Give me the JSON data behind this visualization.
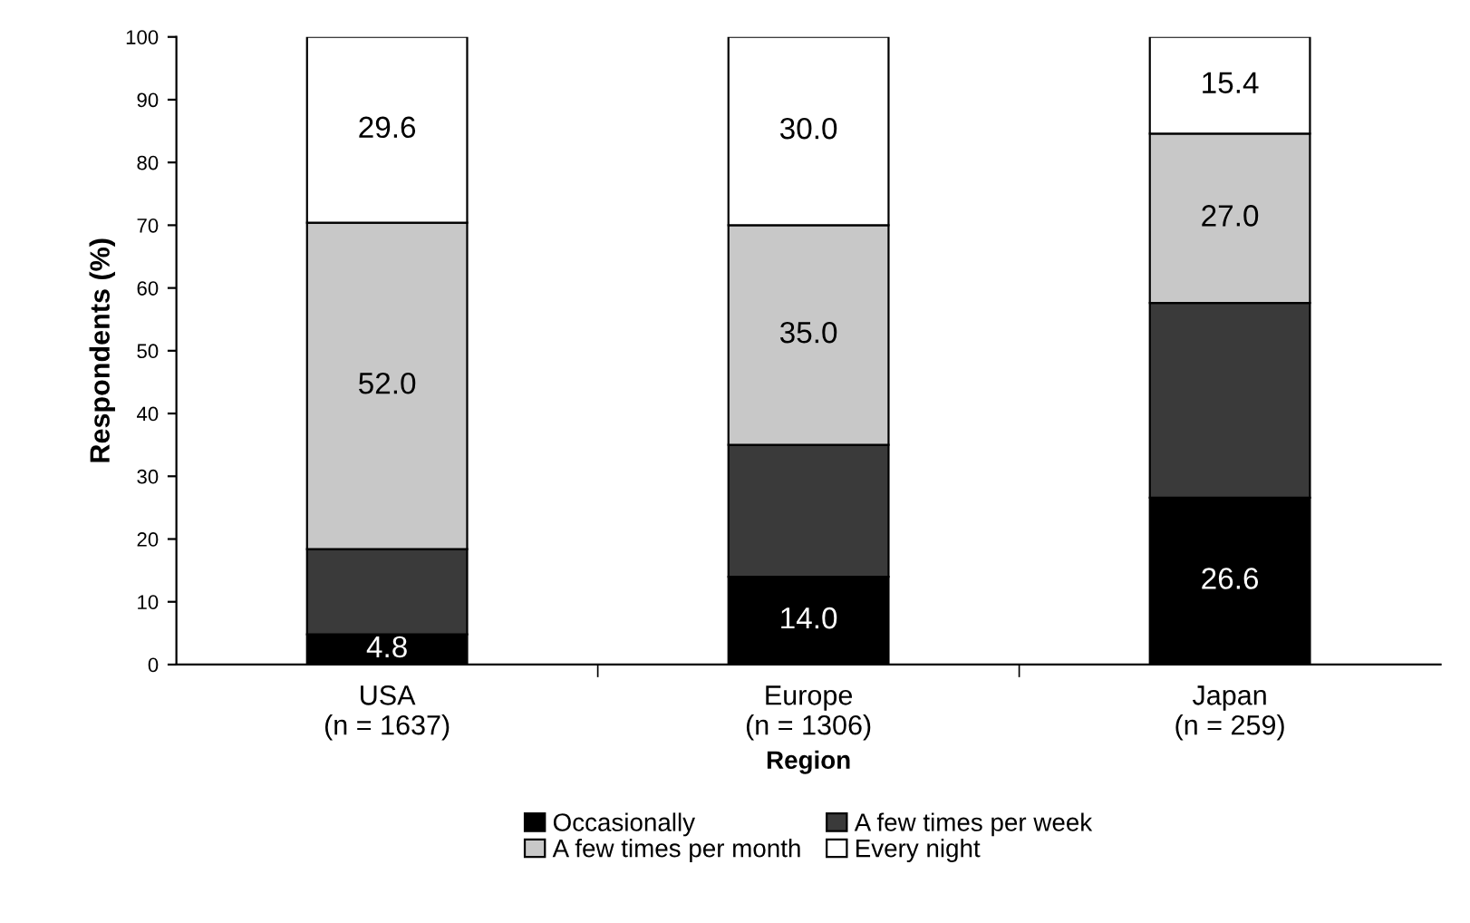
{
  "chart_data": {
    "type": "bar",
    "stacked": true,
    "xlabel": "Region",
    "ylabel": "Respondents (%)",
    "categories": [
      "USA\n(n = 1637)",
      "Europe\n(n = 1306)",
      "Japan\n(n = 259)"
    ],
    "series": [
      {
        "name": "Occasionally",
        "color": "#000000",
        "values": [
          4.8,
          14.0,
          26.6
        ],
        "value_labels": [
          "4.8",
          "14.0",
          "26.6"
        ]
      },
      {
        "name": "A few times per week",
        "color": "#3a3a3a",
        "values": [
          13.6,
          21.0,
          31.0
        ]
      },
      {
        "name": "A few times per month",
        "color": "#c8c8c8",
        "values": [
          52.0,
          35.0,
          27.0
        ],
        "value_labels": [
          "52.0",
          "35.0",
          "27.0"
        ]
      },
      {
        "name": "Every night",
        "color": "#ffffff",
        "values": [
          29.6,
          30.0,
          15.4
        ],
        "value_labels": [
          "29.6",
          "30.0",
          "15.4"
        ]
      }
    ],
    "ylim": [
      0,
      100
    ],
    "yticks": [
      0,
      10,
      20,
      30,
      40,
      50,
      60,
      70,
      80,
      90,
      100
    ],
    "grid": false,
    "legend": "bottom"
  }
}
